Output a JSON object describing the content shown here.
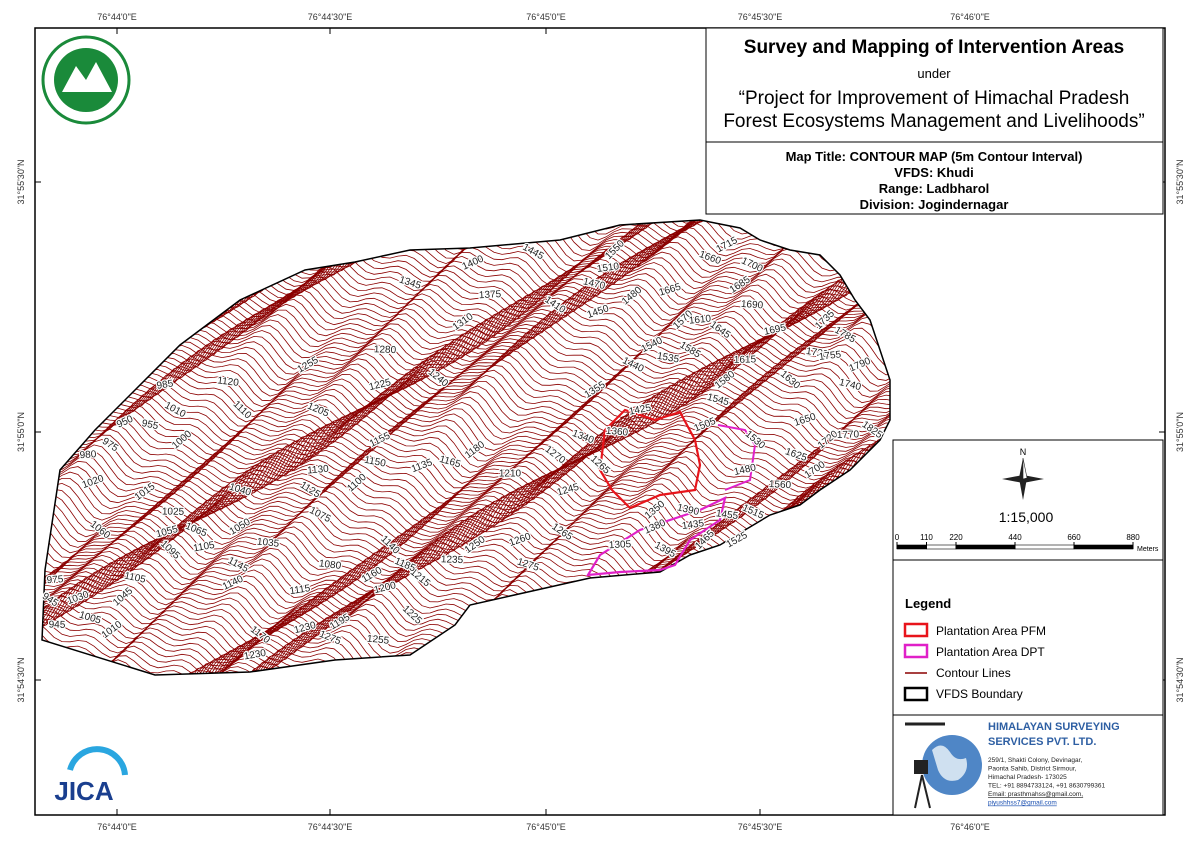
{
  "header": {
    "title": "Survey and Mapping of Intervention Areas",
    "under": "under",
    "project_line1": "“Project for Improvement of Himachal Pradesh",
    "project_line2": "Forest Ecosystems Management and Livelihoods”"
  },
  "map_info": {
    "map_title": "Map Title: CONTOUR MAP (5m Contour Interval)",
    "vfds": "VFDS: Khudi",
    "range": "Range: Ladbharol",
    "division": "Division: Jogindernagar"
  },
  "graticule": {
    "longitudes": [
      "76°44'0\"E",
      "76°44'30\"E",
      "76°45'0\"E",
      "76°45'30\"E",
      "76°46'0\"E"
    ],
    "latitudes": [
      "31°55'30\"N",
      "31°55'0\"N",
      "31°54'30\"N"
    ]
  },
  "north_arrow": "N",
  "scale": {
    "ratio": "1:15,000",
    "ticks": [
      0,
      110,
      220,
      440,
      660,
      880
    ],
    "unit": "Meters"
  },
  "legend": {
    "title": "Legend",
    "items": [
      "Plantation Area PFM",
      "Plantation Area DPT",
      "Contour Lines",
      "VFDS Boundary"
    ]
  },
  "company": {
    "name1": "HIMALAYAN SURVEYING",
    "name2": "SERVICES PVT. LTD.",
    "address": [
      "259/1, Shakti Colony, Devinagar,",
      "Paonta Sahib, District Sirmour,",
      "Himachal Pradesh- 173025",
      "TEL: +91 8894733124, +91 8630799361",
      "Email: prasthmahss@gmail.com,",
      "piyushhss7@gmail.com"
    ]
  },
  "logo_text": "JICA",
  "contour_labels": [
    1550,
    1510,
    1445,
    1400,
    1470,
    1480,
    1375,
    1410,
    1450,
    1345,
    1310,
    1280,
    1240,
    1225,
    1205,
    1255,
    1120,
    1110,
    985,
    1010,
    950,
    955,
    1000,
    980,
    975,
    1020,
    1040,
    1015,
    1025,
    1060,
    1055,
    1065,
    1050,
    1035,
    1095,
    1105,
    1075,
    1155,
    1150,
    1100,
    1130,
    1125,
    1135,
    1165,
    1180,
    1210,
    1270,
    1245,
    1340,
    1355,
    1360,
    1265,
    1425,
    1440,
    1540,
    1535,
    1570,
    1610,
    1585,
    1505,
    1545,
    1580,
    1615,
    1645,
    1665,
    1660,
    1685,
    1690,
    1630,
    1695,
    1700,
    1715,
    1720,
    1735,
    1755,
    1785,
    1790,
    1740,
    1720,
    1770,
    1825,
    1650,
    1625,
    1700,
    1560,
    1530,
    1480,
    1515,
    1525,
    1455,
    1465,
    1435,
    1395,
    1380,
    1390,
    1350,
    1305,
    1265,
    1260,
    1275,
    1250,
    1235,
    1215,
    1200,
    1185,
    1160,
    1080,
    1140,
    1115,
    1145,
    1140,
    1105,
    1045,
    975,
    945,
    1030,
    1005,
    1010,
    945,
    1170,
    1230,
    1275,
    1195,
    1255,
    1225,
    1230
  ]
}
